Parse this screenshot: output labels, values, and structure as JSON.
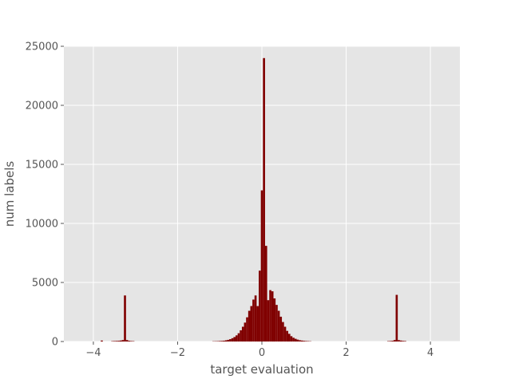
{
  "chart_data": {
    "type": "bar",
    "style": "histogram",
    "title": "",
    "xlabel": "target evaluation",
    "ylabel": "num labels",
    "xlim": [
      -4.7,
      4.7
    ],
    "ylim": [
      0,
      25000
    ],
    "xticks": [
      -4,
      -2,
      0,
      2,
      4
    ],
    "xtick_labels": [
      "−4",
      "−2",
      "0",
      "2",
      "4"
    ],
    "yticks": [
      0,
      5000,
      10000,
      15000,
      20000,
      25000
    ],
    "ytick_labels": [
      "0",
      "5000",
      "10000",
      "15000",
      "20000",
      "25000"
    ],
    "grid": true,
    "legend": "none",
    "background_color": "#e5e5e5",
    "bar_color": "#800000",
    "bin_width": 0.05,
    "bins": [
      {
        "x": -3.8,
        "value": 80
      },
      {
        "x": -3.55,
        "value": 30
      },
      {
        "x": -3.5,
        "value": 40
      },
      {
        "x": -3.45,
        "value": 50
      },
      {
        "x": -3.4,
        "value": 60
      },
      {
        "x": -3.35,
        "value": 80
      },
      {
        "x": -3.3,
        "value": 120
      },
      {
        "x": -3.25,
        "value": 3900
      },
      {
        "x": -3.2,
        "value": 120
      },
      {
        "x": -3.15,
        "value": 60
      },
      {
        "x": -3.1,
        "value": 40
      },
      {
        "x": -3.05,
        "value": 30
      },
      {
        "x": -1.15,
        "value": 20
      },
      {
        "x": -1.1,
        "value": 25
      },
      {
        "x": -1.05,
        "value": 30
      },
      {
        "x": -1.0,
        "value": 40
      },
      {
        "x": -0.95,
        "value": 50
      },
      {
        "x": -0.9,
        "value": 70
      },
      {
        "x": -0.85,
        "value": 100
      },
      {
        "x": -0.8,
        "value": 140
      },
      {
        "x": -0.75,
        "value": 200
      },
      {
        "x": -0.7,
        "value": 280
      },
      {
        "x": -0.65,
        "value": 380
      },
      {
        "x": -0.6,
        "value": 520
      },
      {
        "x": -0.55,
        "value": 700
      },
      {
        "x": -0.5,
        "value": 950
      },
      {
        "x": -0.45,
        "value": 1250
      },
      {
        "x": -0.4,
        "value": 1600
      },
      {
        "x": -0.35,
        "value": 2050
      },
      {
        "x": -0.3,
        "value": 2600
      },
      {
        "x": -0.25,
        "value": 3000
      },
      {
        "x": -0.2,
        "value": 3550
      },
      {
        "x": -0.15,
        "value": 3900
      },
      {
        "x": -0.1,
        "value": 3000
      },
      {
        "x": -0.05,
        "value": 6000
      },
      {
        "x": 0.0,
        "value": 12800
      },
      {
        "x": 0.05,
        "value": 24000
      },
      {
        "x": 0.1,
        "value": 8100
      },
      {
        "x": 0.15,
        "value": 3500
      },
      {
        "x": 0.2,
        "value": 4350
      },
      {
        "x": 0.25,
        "value": 4250
      },
      {
        "x": 0.3,
        "value": 3650
      },
      {
        "x": 0.35,
        "value": 3100
      },
      {
        "x": 0.4,
        "value": 2600
      },
      {
        "x": 0.45,
        "value": 2100
      },
      {
        "x": 0.5,
        "value": 1650
      },
      {
        "x": 0.55,
        "value": 1250
      },
      {
        "x": 0.6,
        "value": 900
      },
      {
        "x": 0.65,
        "value": 650
      },
      {
        "x": 0.7,
        "value": 450
      },
      {
        "x": 0.75,
        "value": 320
      },
      {
        "x": 0.8,
        "value": 230
      },
      {
        "x": 0.85,
        "value": 160
      },
      {
        "x": 0.9,
        "value": 110
      },
      {
        "x": 0.95,
        "value": 80
      },
      {
        "x": 1.0,
        "value": 55
      },
      {
        "x": 1.05,
        "value": 40
      },
      {
        "x": 1.1,
        "value": 30
      },
      {
        "x": 1.15,
        "value": 20
      },
      {
        "x": 3.0,
        "value": 30
      },
      {
        "x": 3.05,
        "value": 40
      },
      {
        "x": 3.1,
        "value": 60
      },
      {
        "x": 3.15,
        "value": 120
      },
      {
        "x": 3.2,
        "value": 3950
      },
      {
        "x": 3.25,
        "value": 120
      },
      {
        "x": 3.3,
        "value": 80
      },
      {
        "x": 3.35,
        "value": 50
      },
      {
        "x": 3.4,
        "value": 40
      }
    ]
  }
}
